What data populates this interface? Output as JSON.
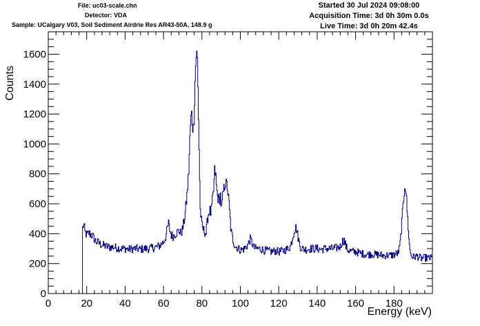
{
  "header": {
    "file": "File: uc03-scale.chn",
    "detector": "Detector: VDA",
    "sample": "Sample: UCalgary V03, Soil Sediment Airdrie Res AR43-50A, 148.9 g",
    "started": "Started 30 Jul 2024 09:08:00",
    "acquisition_time": "Acquisition Time: 3d 0h 30m 0.0s",
    "live_time": "Live Time: 3d 0h 20m 42.4s"
  },
  "chart_data": {
    "type": "line",
    "xlabel": "Energy (keV)",
    "ylabel": "Counts",
    "xlim": [
      0,
      200
    ],
    "ylim": [
      0,
      1750
    ],
    "x_ticks": [
      0,
      20,
      40,
      60,
      80,
      100,
      120,
      140,
      160,
      180
    ],
    "y_ticks": [
      0,
      200,
      400,
      600,
      800,
      1000,
      1200,
      1400,
      1600
    ],
    "line_color": "#000080",
    "series": [
      {
        "points": [
          [
            17.5,
            0
          ],
          [
            17.6,
            420
          ],
          [
            18,
            455
          ],
          [
            18.5,
            450
          ],
          [
            19,
            410
          ],
          [
            20,
            390
          ],
          [
            21,
            405
          ],
          [
            22,
            395
          ],
          [
            23,
            385
          ],
          [
            24,
            360
          ],
          [
            25,
            345
          ],
          [
            26,
            340
          ],
          [
            27,
            330
          ],
          [
            28,
            325
          ],
          [
            29,
            320
          ],
          [
            30,
            315
          ],
          [
            32,
            310
          ],
          [
            34,
            310
          ],
          [
            36,
            305
          ],
          [
            38,
            300
          ],
          [
            40,
            300
          ],
          [
            42,
            295
          ],
          [
            44,
            300
          ],
          [
            46,
            300
          ],
          [
            48,
            295
          ],
          [
            50,
            300
          ],
          [
            52,
            300
          ],
          [
            54,
            305
          ],
          [
            56,
            310
          ],
          [
            58,
            320
          ],
          [
            59,
            335
          ],
          [
            60,
            345
          ],
          [
            61,
            380
          ],
          [
            62,
            440
          ],
          [
            62.5,
            470
          ],
          [
            63,
            430
          ],
          [
            64,
            390
          ],
          [
            65,
            385
          ],
          [
            66,
            400
          ],
          [
            67,
            410
          ],
          [
            68,
            420
          ],
          [
            69,
            400
          ],
          [
            70,
            440
          ],
          [
            71,
            520
          ],
          [
            72,
            640
          ],
          [
            73,
            820
          ],
          [
            73.5,
            1000
          ],
          [
            74,
            1150
          ],
          [
            74.5,
            1200
          ],
          [
            75,
            1120
          ],
          [
            75.5,
            1100
          ],
          [
            76,
            1300
          ],
          [
            76.5,
            1500
          ],
          [
            77,
            1620
          ],
          [
            77.5,
            1560
          ],
          [
            78,
            1250
          ],
          [
            78.5,
            900
          ],
          [
            79,
            560
          ],
          [
            80,
            440
          ],
          [
            81,
            420
          ],
          [
            82,
            400
          ],
          [
            83,
            520
          ],
          [
            84,
            560
          ],
          [
            84.5,
            530
          ],
          [
            85,
            580
          ],
          [
            86,
            700
          ],
          [
            86.5,
            820
          ],
          [
            87,
            800
          ],
          [
            87.5,
            700
          ],
          [
            88,
            650
          ],
          [
            89,
            620
          ],
          [
            89.5,
            660
          ],
          [
            90,
            560
          ],
          [
            91,
            680
          ],
          [
            92,
            740
          ],
          [
            93,
            720
          ],
          [
            94,
            600
          ],
          [
            95,
            420
          ],
          [
            96,
            360
          ],
          [
            97,
            320
          ],
          [
            98,
            310
          ],
          [
            100,
            290
          ],
          [
            102,
            300
          ],
          [
            104,
            330
          ],
          [
            105,
            365
          ],
          [
            106,
            340
          ],
          [
            107,
            305
          ],
          [
            108,
            300
          ],
          [
            110,
            300
          ],
          [
            112,
            290
          ],
          [
            114,
            285
          ],
          [
            116,
            280
          ],
          [
            118,
            285
          ],
          [
            120,
            280
          ],
          [
            122,
            285
          ],
          [
            124,
            295
          ],
          [
            126,
            315
          ],
          [
            127,
            370
          ],
          [
            128,
            430
          ],
          [
            129,
            440
          ],
          [
            130,
            375
          ],
          [
            131,
            315
          ],
          [
            132,
            300
          ],
          [
            134,
            295
          ],
          [
            136,
            300
          ],
          [
            138,
            300
          ],
          [
            140,
            300
          ],
          [
            142,
            295
          ],
          [
            144,
            300
          ],
          [
            146,
            300
          ],
          [
            148,
            300
          ],
          [
            150,
            305
          ],
          [
            152,
            315
          ],
          [
            153,
            350
          ],
          [
            154,
            355
          ],
          [
            155,
            310
          ],
          [
            156,
            290
          ],
          [
            158,
            280
          ],
          [
            160,
            280
          ],
          [
            162,
            270
          ],
          [
            164,
            265
          ],
          [
            166,
            260
          ],
          [
            168,
            265
          ],
          [
            170,
            260
          ],
          [
            172,
            260
          ],
          [
            174,
            255
          ],
          [
            176,
            255
          ],
          [
            178,
            255
          ],
          [
            180,
            260
          ],
          [
            182,
            270
          ],
          [
            183,
            320
          ],
          [
            184,
            480
          ],
          [
            185,
            650
          ],
          [
            185.5,
            730
          ],
          [
            186,
            700
          ],
          [
            187,
            500
          ],
          [
            188,
            300
          ],
          [
            189,
            250
          ],
          [
            190,
            245
          ],
          [
            192,
            250
          ],
          [
            194,
            235
          ],
          [
            196,
            240
          ],
          [
            198,
            235
          ],
          [
            200,
            240
          ]
        ]
      }
    ]
  }
}
